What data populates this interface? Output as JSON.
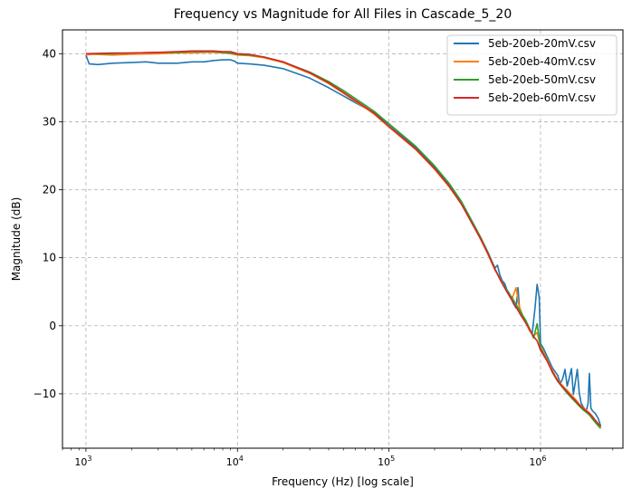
{
  "chart_data": {
    "type": "line",
    "title": "Frequency vs Magnitude for All Files in Cascade_5_20",
    "xlabel": "Frequency (Hz) [log scale]",
    "ylabel": "Magnitude (dB)",
    "xscale": "log",
    "xlim": [
      700,
      3500000
    ],
    "ylim": [
      -18,
      43.5
    ],
    "xticks": [
      {
        "value": 1000,
        "base": "10",
        "exp": "3"
      },
      {
        "value": 10000,
        "base": "10",
        "exp": "4"
      },
      {
        "value": 100000,
        "base": "10",
        "exp": "5"
      },
      {
        "value": 1000000,
        "base": "10",
        "exp": "6"
      }
    ],
    "yticks": [
      -10,
      0,
      10,
      20,
      30,
      40
    ],
    "grid": true,
    "legend_position": "top-right",
    "series": [
      {
        "name": "5eb-20eb-20mV.csv",
        "color": "#1f77b4",
        "points": [
          [
            1000,
            39.8
          ],
          [
            1050,
            38.5
          ],
          [
            1200,
            38.4
          ],
          [
            1500,
            38.6
          ],
          [
            2000,
            38.7
          ],
          [
            2500,
            38.8
          ],
          [
            3000,
            38.6
          ],
          [
            4000,
            38.6
          ],
          [
            5000,
            38.8
          ],
          [
            6000,
            38.8
          ],
          [
            7000,
            39.0
          ],
          [
            8000,
            39.1
          ],
          [
            9000,
            39.1
          ],
          [
            9600,
            38.9
          ],
          [
            10000,
            38.6
          ],
          [
            12000,
            38.5
          ],
          [
            15000,
            38.3
          ],
          [
            20000,
            37.8
          ],
          [
            30000,
            36.4
          ],
          [
            40000,
            35.0
          ],
          [
            50000,
            33.8
          ],
          [
            60000,
            32.8
          ],
          [
            70000,
            32.0
          ],
          [
            80000,
            31.3
          ],
          [
            100000,
            29.6
          ],
          [
            150000,
            26.2
          ],
          [
            200000,
            23.3
          ],
          [
            250000,
            20.8
          ],
          [
            300000,
            18.2
          ],
          [
            350000,
            15.5
          ],
          [
            400000,
            13.1
          ],
          [
            450000,
            10.8
          ],
          [
            480000,
            9.4
          ],
          [
            500000,
            8.5
          ],
          [
            520000,
            8.9
          ],
          [
            540000,
            7.4
          ],
          [
            560000,
            6.6
          ],
          [
            580000,
            6.2
          ],
          [
            600000,
            5.3
          ],
          [
            620000,
            4.8
          ],
          [
            640000,
            4.1
          ],
          [
            660000,
            3.3
          ],
          [
            690000,
            2.6
          ],
          [
            710000,
            5.6
          ],
          [
            730000,
            1.8
          ],
          [
            760000,
            1.2
          ],
          [
            800000,
            0.6
          ],
          [
            850000,
            -0.6
          ],
          [
            880000,
            -1.2
          ],
          [
            920000,
            2.6
          ],
          [
            950000,
            6.1
          ],
          [
            980000,
            4.2
          ],
          [
            1000000,
            -2.6
          ],
          [
            1050000,
            -3.4
          ],
          [
            1100000,
            -4.4
          ],
          [
            1200000,
            -6.2
          ],
          [
            1300000,
            -7.3
          ],
          [
            1350000,
            -8.5
          ],
          [
            1400000,
            -7.8
          ],
          [
            1450000,
            -6.4
          ],
          [
            1500000,
            -8.9
          ],
          [
            1550000,
            -7.6
          ],
          [
            1600000,
            -6.3
          ],
          [
            1650000,
            -10.1
          ],
          [
            1700000,
            -8.2
          ],
          [
            1750000,
            -6.4
          ],
          [
            1800000,
            -9.8
          ],
          [
            1850000,
            -11.3
          ],
          [
            1900000,
            -11.8
          ],
          [
            1950000,
            -12.2
          ],
          [
            2000000,
            -12.6
          ],
          [
            2060000,
            -11.4
          ],
          [
            2100000,
            -7.0
          ],
          [
            2150000,
            -12.1
          ],
          [
            2200000,
            -12.5
          ],
          [
            2300000,
            -12.9
          ],
          [
            2400000,
            -13.6
          ],
          [
            2450000,
            -14.2
          ],
          [
            2500000,
            -14.8
          ]
        ]
      },
      {
        "name": "5eb-20eb-40mV.csv",
        "color": "#ff7f0e",
        "points": [
          [
            1000,
            39.8
          ],
          [
            1100,
            39.9
          ],
          [
            1500,
            39.8
          ],
          [
            2000,
            39.9
          ],
          [
            3000,
            40.0
          ],
          [
            4000,
            40.1
          ],
          [
            5000,
            40.1
          ],
          [
            6000,
            40.2
          ],
          [
            7000,
            40.2
          ],
          [
            8000,
            40.1
          ],
          [
            9000,
            40.0
          ],
          [
            10000,
            39.8
          ],
          [
            12000,
            39.7
          ],
          [
            15000,
            39.4
          ],
          [
            20000,
            38.7
          ],
          [
            30000,
            37.1
          ],
          [
            40000,
            35.6
          ],
          [
            50000,
            34.2
          ],
          [
            60000,
            33.0
          ],
          [
            70000,
            32.0
          ],
          [
            80000,
            31.1
          ],
          [
            100000,
            29.2
          ],
          [
            150000,
            25.9
          ],
          [
            200000,
            23.0
          ],
          [
            250000,
            20.4
          ],
          [
            300000,
            17.9
          ],
          [
            350000,
            15.2
          ],
          [
            400000,
            12.8
          ],
          [
            450000,
            10.5
          ],
          [
            500000,
            8.2
          ],
          [
            550000,
            6.7
          ],
          [
            600000,
            5.0
          ],
          [
            650000,
            4.0
          ],
          [
            690000,
            5.6
          ],
          [
            720000,
            3.0
          ],
          [
            760000,
            1.6
          ],
          [
            800000,
            0.5
          ],
          [
            850000,
            -0.8
          ],
          [
            900000,
            -1.5
          ],
          [
            950000,
            -1.0
          ],
          [
            1000000,
            -3.0
          ],
          [
            1100000,
            -4.8
          ],
          [
            1200000,
            -6.6
          ],
          [
            1300000,
            -8.0
          ],
          [
            1400000,
            -8.8
          ],
          [
            1500000,
            -9.5
          ],
          [
            1600000,
            -10.2
          ],
          [
            1700000,
            -10.8
          ],
          [
            1800000,
            -11.5
          ],
          [
            1900000,
            -12.0
          ],
          [
            2000000,
            -12.4
          ],
          [
            2100000,
            -12.8
          ],
          [
            2200000,
            -13.3
          ],
          [
            2300000,
            -13.9
          ],
          [
            2400000,
            -14.4
          ],
          [
            2500000,
            -14.9
          ]
        ]
      },
      {
        "name": "5eb-20eb-50mV.csv",
        "color": "#2ca02c",
        "points": [
          [
            1000,
            40.0
          ],
          [
            1500,
            40.0
          ],
          [
            2000,
            40.1
          ],
          [
            3000,
            40.2
          ],
          [
            4000,
            40.2
          ],
          [
            5000,
            40.3
          ],
          [
            6000,
            40.3
          ],
          [
            7000,
            40.3
          ],
          [
            8000,
            40.2
          ],
          [
            9000,
            40.1
          ],
          [
            10000,
            39.9
          ],
          [
            12000,
            39.8
          ],
          [
            15000,
            39.5
          ],
          [
            20000,
            38.8
          ],
          [
            30000,
            37.3
          ],
          [
            40000,
            35.9
          ],
          [
            50000,
            34.6
          ],
          [
            60000,
            33.4
          ],
          [
            70000,
            32.4
          ],
          [
            80000,
            31.5
          ],
          [
            100000,
            29.7
          ],
          [
            150000,
            26.4
          ],
          [
            200000,
            23.5
          ],
          [
            250000,
            20.9
          ],
          [
            300000,
            18.3
          ],
          [
            350000,
            15.5
          ],
          [
            400000,
            13.1
          ],
          [
            450000,
            10.7
          ],
          [
            500000,
            8.4
          ],
          [
            550000,
            6.6
          ],
          [
            600000,
            5.2
          ],
          [
            650000,
            4.1
          ],
          [
            700000,
            2.9
          ],
          [
            750000,
            1.8
          ],
          [
            800000,
            0.8
          ],
          [
            850000,
            -0.5
          ],
          [
            900000,
            -1.8
          ],
          [
            950000,
            0.3
          ],
          [
            1000000,
            -3.3
          ],
          [
            1100000,
            -5.0
          ],
          [
            1200000,
            -6.9
          ],
          [
            1300000,
            -8.2
          ],
          [
            1400000,
            -9.1
          ],
          [
            1500000,
            -9.9
          ],
          [
            1600000,
            -10.6
          ],
          [
            1700000,
            -11.2
          ],
          [
            1800000,
            -11.8
          ],
          [
            1900000,
            -12.3
          ],
          [
            2000000,
            -12.7
          ],
          [
            2100000,
            -13.1
          ],
          [
            2200000,
            -13.7
          ],
          [
            2300000,
            -14.2
          ],
          [
            2400000,
            -14.7
          ],
          [
            2500000,
            -15.1
          ]
        ]
      },
      {
        "name": "5eb-20eb-60mV.csv",
        "color": "#d62728",
        "points": [
          [
            1000,
            40.0
          ],
          [
            1500,
            40.1
          ],
          [
            2000,
            40.1
          ],
          [
            3000,
            40.2
          ],
          [
            4000,
            40.3
          ],
          [
            5000,
            40.4
          ],
          [
            6000,
            40.4
          ],
          [
            7000,
            40.4
          ],
          [
            8000,
            40.3
          ],
          [
            9000,
            40.3
          ],
          [
            10000,
            40.0
          ],
          [
            12000,
            39.9
          ],
          [
            15000,
            39.5
          ],
          [
            20000,
            38.8
          ],
          [
            30000,
            37.2
          ],
          [
            40000,
            35.7
          ],
          [
            50000,
            34.3
          ],
          [
            60000,
            33.1
          ],
          [
            70000,
            32.1
          ],
          [
            80000,
            31.2
          ],
          [
            100000,
            29.3
          ],
          [
            150000,
            26.0
          ],
          [
            200000,
            23.1
          ],
          [
            250000,
            20.5
          ],
          [
            300000,
            17.9
          ],
          [
            350000,
            15.2
          ],
          [
            400000,
            12.9
          ],
          [
            450000,
            10.6
          ],
          [
            500000,
            8.3
          ],
          [
            550000,
            6.5
          ],
          [
            600000,
            5.0
          ],
          [
            650000,
            3.7
          ],
          [
            700000,
            2.5
          ],
          [
            750000,
            1.4
          ],
          [
            800000,
            0.4
          ],
          [
            850000,
            -0.6
          ],
          [
            900000,
            -1.6
          ],
          [
            950000,
            -2.2
          ],
          [
            1000000,
            -3.6
          ],
          [
            1100000,
            -5.1
          ],
          [
            1200000,
            -6.8
          ],
          [
            1300000,
            -8.1
          ],
          [
            1400000,
            -9.0
          ],
          [
            1500000,
            -9.7
          ],
          [
            1600000,
            -10.4
          ],
          [
            1700000,
            -11.0
          ],
          [
            1800000,
            -11.6
          ],
          [
            1900000,
            -12.1
          ],
          [
            2000000,
            -12.5
          ],
          [
            2100000,
            -12.9
          ],
          [
            2200000,
            -13.4
          ],
          [
            2300000,
            -13.9
          ],
          [
            2400000,
            -14.4
          ],
          [
            2500000,
            -14.7
          ]
        ]
      }
    ]
  }
}
